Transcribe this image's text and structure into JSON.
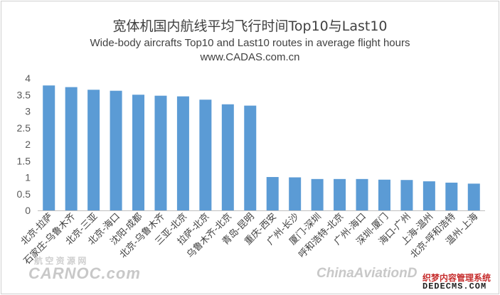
{
  "chart_data": {
    "type": "bar",
    "title": "宽体机国内航线平均飞行时间Top10与Last10",
    "subtitle": "Wide-body aircrafts Top10 and Last10 routes in average flight hours",
    "source": "www.CADAS.com.cn",
    "xlabel": "",
    "ylabel": "",
    "ylim": [
      0,
      4
    ],
    "yticks": [
      "0",
      "0.5",
      "1",
      "1.5",
      "2",
      "2.5",
      "3",
      "3.5",
      "4"
    ],
    "grid": false,
    "bar_color": "#5b9bd5",
    "categories": [
      "北京-拉萨",
      "石家庄-乌鲁木齐",
      "北京-三亚",
      "北京-海口",
      "沈阳-成都",
      "北京-乌鲁木齐",
      "三亚-北京",
      "拉萨-北京",
      "乌鲁木齐-北京",
      "青岛-昆明",
      "重庆-西安",
      "广州-长沙",
      "厦门-深圳",
      "呼和浩特-北京",
      "广州-海口",
      "深圳-厦门",
      "海口-广州",
      "上海-温州",
      "北京-呼和浩特",
      "温州-上海"
    ],
    "values": [
      3.78,
      3.73,
      3.65,
      3.62,
      3.5,
      3.47,
      3.45,
      3.35,
      3.21,
      3.17,
      1.01,
      1.0,
      0.95,
      0.95,
      0.95,
      0.93,
      0.92,
      0.88,
      0.84,
      0.81
    ]
  },
  "watermarks": {
    "left_small": "航 空 资 源 网",
    "left_big": "CARNOC.com",
    "right_big": "ChinaAviationD",
    "brand_cn": "织梦内容管理系统",
    "brand_en": "DEDECMS.COM"
  }
}
